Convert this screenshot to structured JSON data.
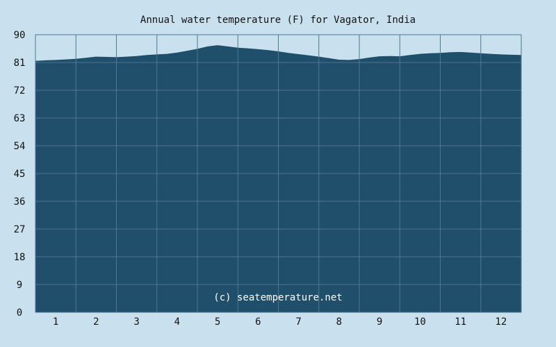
{
  "chart_data": {
    "type": "area",
    "title": "Annual water temperature (F) for Vagator, India",
    "xlabel": "",
    "ylabel": "",
    "ylim": [
      0,
      90
    ],
    "yticks": [
      "0",
      "9",
      "18",
      "27",
      "36",
      "45",
      "54",
      "63",
      "72",
      "81",
      "90"
    ],
    "xlim": [
      0.5,
      12.5
    ],
    "xticks": [
      "1",
      "2",
      "3",
      "4",
      "5",
      "6",
      "7",
      "8",
      "9",
      "10",
      "11",
      "12"
    ],
    "grid": true,
    "colors": {
      "background": "#c9e1ee",
      "fill": "#1f4f6a",
      "grid": "#4d7891",
      "frame": "#4d7891"
    },
    "watermark": "(c) seatemperature.net",
    "series": [
      {
        "x": [
          0.5,
          0.75,
          1.0,
          1.25,
          1.5,
          1.75,
          2.0,
          2.25,
          2.5,
          2.75,
          3.0,
          3.25,
          3.5,
          3.75,
          4.0,
          4.25,
          4.5,
          4.75,
          5.0,
          5.25,
          5.5,
          5.75,
          6.0,
          6.25,
          6.5,
          6.75,
          7.0,
          7.25,
          7.5,
          7.75,
          8.0,
          8.25,
          8.5,
          8.75,
          9.0,
          9.25,
          9.5,
          9.75,
          10.0,
          10.25,
          10.5,
          10.75,
          11.0,
          11.25,
          11.5,
          11.75,
          12.0,
          12.25,
          12.5
        ],
        "values": [
          81.5,
          81.7,
          81.8,
          82.0,
          82.2,
          82.5,
          82.9,
          82.8,
          82.7,
          82.9,
          83.1,
          83.4,
          83.6,
          83.8,
          84.2,
          84.8,
          85.4,
          86.2,
          86.6,
          86.2,
          85.8,
          85.6,
          85.3,
          85.0,
          84.6,
          84.1,
          83.7,
          83.3,
          82.9,
          82.4,
          81.9,
          81.8,
          82.1,
          82.6,
          83.0,
          83.1,
          83.0,
          83.4,
          83.8,
          84.0,
          84.1,
          84.3,
          84.4,
          84.2,
          84.0,
          83.8,
          83.6,
          83.5,
          83.4
        ]
      }
    ]
  }
}
